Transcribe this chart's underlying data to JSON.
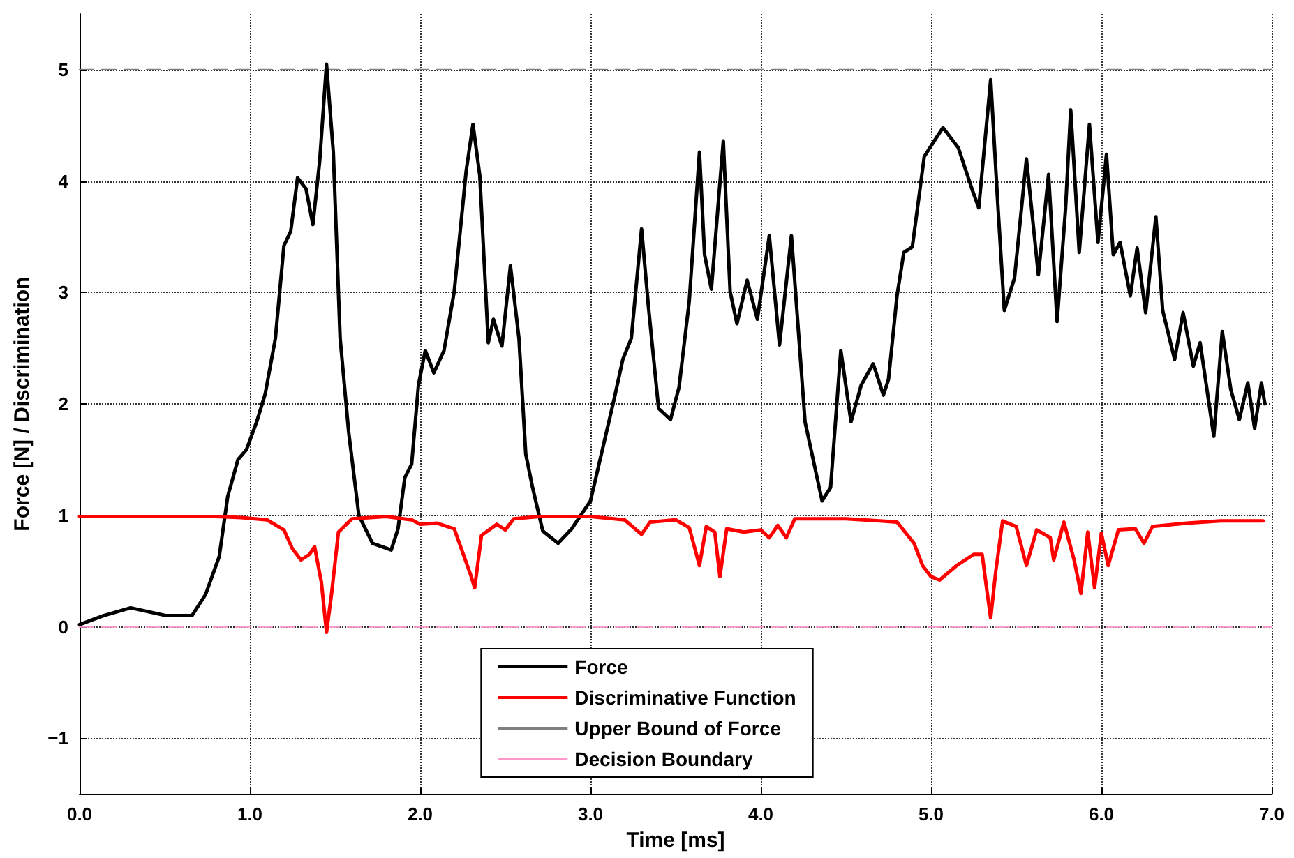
{
  "chart_data": {
    "type": "line",
    "xlabel": "Time [ms]",
    "ylabel": "Force [N] / Discrimination",
    "xlim": [
      0,
      7
    ],
    "ylim": [
      -1.5,
      5.5
    ],
    "xticks": [
      {
        "value": 0,
        "label": "0.0"
      },
      {
        "value": 1,
        "label": "1.0"
      },
      {
        "value": 2,
        "label": "2.0"
      },
      {
        "value": 3,
        "label": "3.0"
      },
      {
        "value": 4,
        "label": "4.0"
      },
      {
        "value": 5,
        "label": "5.0"
      },
      {
        "value": 6,
        "label": "6.0"
      },
      {
        "value": 7,
        "label": "7.0"
      }
    ],
    "yticks": [
      {
        "value": -1,
        "label": "−1"
      },
      0,
      1,
      2,
      3,
      4,
      5
    ],
    "grid": true,
    "legend": "bottom",
    "marker": "none",
    "series": [
      {
        "name": "Force",
        "color": "#000000",
        "line_style": "solid",
        "x": [
          0,
          0.14,
          0.3,
          0.51,
          0.66,
          0.74,
          0.82,
          0.87,
          0.93,
          0.98,
          1.04,
          1.09,
          1.15,
          1.2,
          1.24,
          1.28,
          1.33,
          1.37,
          1.41,
          1.45,
          1.49,
          1.53,
          1.58,
          1.64,
          1.72,
          1.83,
          1.87,
          1.91,
          1.95,
          1.99,
          2.03,
          2.08,
          2.14,
          2.2,
          2.27,
          2.31,
          2.35,
          2.4,
          2.43,
          2.48,
          2.53,
          2.58,
          2.62,
          2.66,
          2.72,
          2.81,
          2.89,
          3.0,
          3.14,
          3.19,
          3.24,
          3.3,
          3.34,
          3.4,
          3.47,
          3.52,
          3.58,
          3.64,
          3.67,
          3.71,
          3.78,
          3.82,
          3.86,
          3.92,
          3.98,
          4.05,
          4.11,
          4.18,
          4.26,
          4.36,
          4.41,
          4.47,
          4.53,
          4.59,
          4.66,
          4.72,
          4.75,
          4.8,
          4.84,
          4.89,
          4.96,
          5.01,
          5.07,
          5.16,
          5.24,
          5.28,
          5.35,
          5.39,
          5.43,
          5.49,
          5.56,
          5.63,
          5.69,
          5.74,
          5.79,
          5.82,
          5.87,
          5.93,
          5.98,
          6.03,
          6.07,
          6.11,
          6.17,
          6.21,
          6.26,
          6.32,
          6.36,
          6.43,
          6.48,
          6.54,
          6.58,
          6.66,
          6.71,
          6.76,
          6.81,
          6.86,
          6.9,
          6.94,
          6.96
        ],
        "values": [
          0.02,
          0.1,
          0.17,
          0.1,
          0.1,
          0.29,
          0.63,
          1.17,
          1.5,
          1.59,
          1.84,
          2.09,
          2.59,
          3.42,
          3.55,
          4.03,
          3.93,
          3.61,
          4.18,
          5.05,
          4.26,
          2.59,
          1.75,
          1.0,
          0.75,
          0.69,
          0.88,
          1.34,
          1.46,
          2.17,
          2.48,
          2.28,
          2.48,
          3.01,
          4.09,
          4.51,
          4.05,
          2.55,
          2.76,
          2.52,
          3.24,
          2.59,
          1.55,
          1.25,
          0.86,
          0.75,
          0.88,
          1.13,
          2.05,
          2.4,
          2.59,
          3.57,
          2.88,
          1.96,
          1.86,
          2.15,
          2.92,
          4.26,
          3.34,
          3.03,
          4.36,
          3.01,
          2.72,
          3.11,
          2.76,
          3.51,
          2.53,
          3.51,
          1.84,
          1.13,
          1.25,
          2.48,
          1.84,
          2.17,
          2.36,
          2.08,
          2.22,
          2.97,
          3.36,
          3.41,
          4.22,
          4.34,
          4.48,
          4.3,
          3.93,
          3.76,
          4.91,
          3.84,
          2.84,
          3.13,
          4.2,
          3.16,
          4.06,
          2.74,
          3.76,
          4.64,
          3.36,
          4.51,
          3.45,
          4.24,
          3.34,
          3.45,
          2.97,
          3.4,
          2.82,
          3.68,
          2.84,
          2.4,
          2.82,
          2.34,
          2.55,
          1.71,
          2.65,
          2.13,
          1.86,
          2.19,
          1.78,
          2.19,
          2.0
        ]
      },
      {
        "name": "Discriminative Function",
        "color": "#ff0000",
        "line_style": "solid",
        "x": [
          0,
          0.5,
          0.8,
          0.95,
          1.1,
          1.2,
          1.25,
          1.3,
          1.35,
          1.38,
          1.42,
          1.45,
          1.48,
          1.52,
          1.6,
          1.8,
          1.95,
          2.0,
          2.1,
          2.2,
          2.3,
          2.32,
          2.36,
          2.45,
          2.5,
          2.55,
          2.7,
          3.0,
          3.2,
          3.3,
          3.35,
          3.5,
          3.58,
          3.64,
          3.68,
          3.73,
          3.76,
          3.8,
          3.9,
          4.0,
          4.05,
          4.1,
          4.15,
          4.2,
          4.5,
          4.8,
          4.9,
          4.95,
          5.0,
          5.05,
          5.15,
          5.25,
          5.3,
          5.33,
          5.35,
          5.38,
          5.42,
          5.5,
          5.56,
          5.62,
          5.7,
          5.72,
          5.78,
          5.84,
          5.88,
          5.92,
          5.96,
          6.0,
          6.04,
          6.1,
          6.2,
          6.25,
          6.3,
          6.5,
          6.7,
          6.95
        ],
        "values": [
          0.99,
          0.99,
          0.99,
          0.98,
          0.96,
          0.87,
          0.7,
          0.6,
          0.65,
          0.72,
          0.4,
          -0.05,
          0.3,
          0.85,
          0.97,
          0.99,
          0.96,
          0.92,
          0.93,
          0.88,
          0.45,
          0.35,
          0.82,
          0.92,
          0.87,
          0.97,
          0.99,
          0.99,
          0.96,
          0.83,
          0.94,
          0.96,
          0.89,
          0.55,
          0.9,
          0.85,
          0.45,
          0.88,
          0.85,
          0.87,
          0.8,
          0.91,
          0.8,
          0.97,
          0.97,
          0.94,
          0.75,
          0.55,
          0.45,
          0.42,
          0.55,
          0.65,
          0.65,
          0.3,
          0.08,
          0.5,
          0.95,
          0.9,
          0.55,
          0.87,
          0.8,
          0.6,
          0.94,
          0.6,
          0.3,
          0.85,
          0.35,
          0.84,
          0.55,
          0.87,
          0.88,
          0.75,
          0.9,
          0.93,
          0.95,
          0.95
        ]
      },
      {
        "name": "Upper Bound of Force",
        "color": "#808080",
        "line_style": "dashed",
        "x": [
          0,
          7
        ],
        "values": [
          5,
          5
        ]
      },
      {
        "name": "Decision Boundary",
        "color": "#ff99cc",
        "line_style": "dashed",
        "x": [
          0,
          7
        ],
        "values": [
          0,
          0
        ]
      }
    ]
  }
}
